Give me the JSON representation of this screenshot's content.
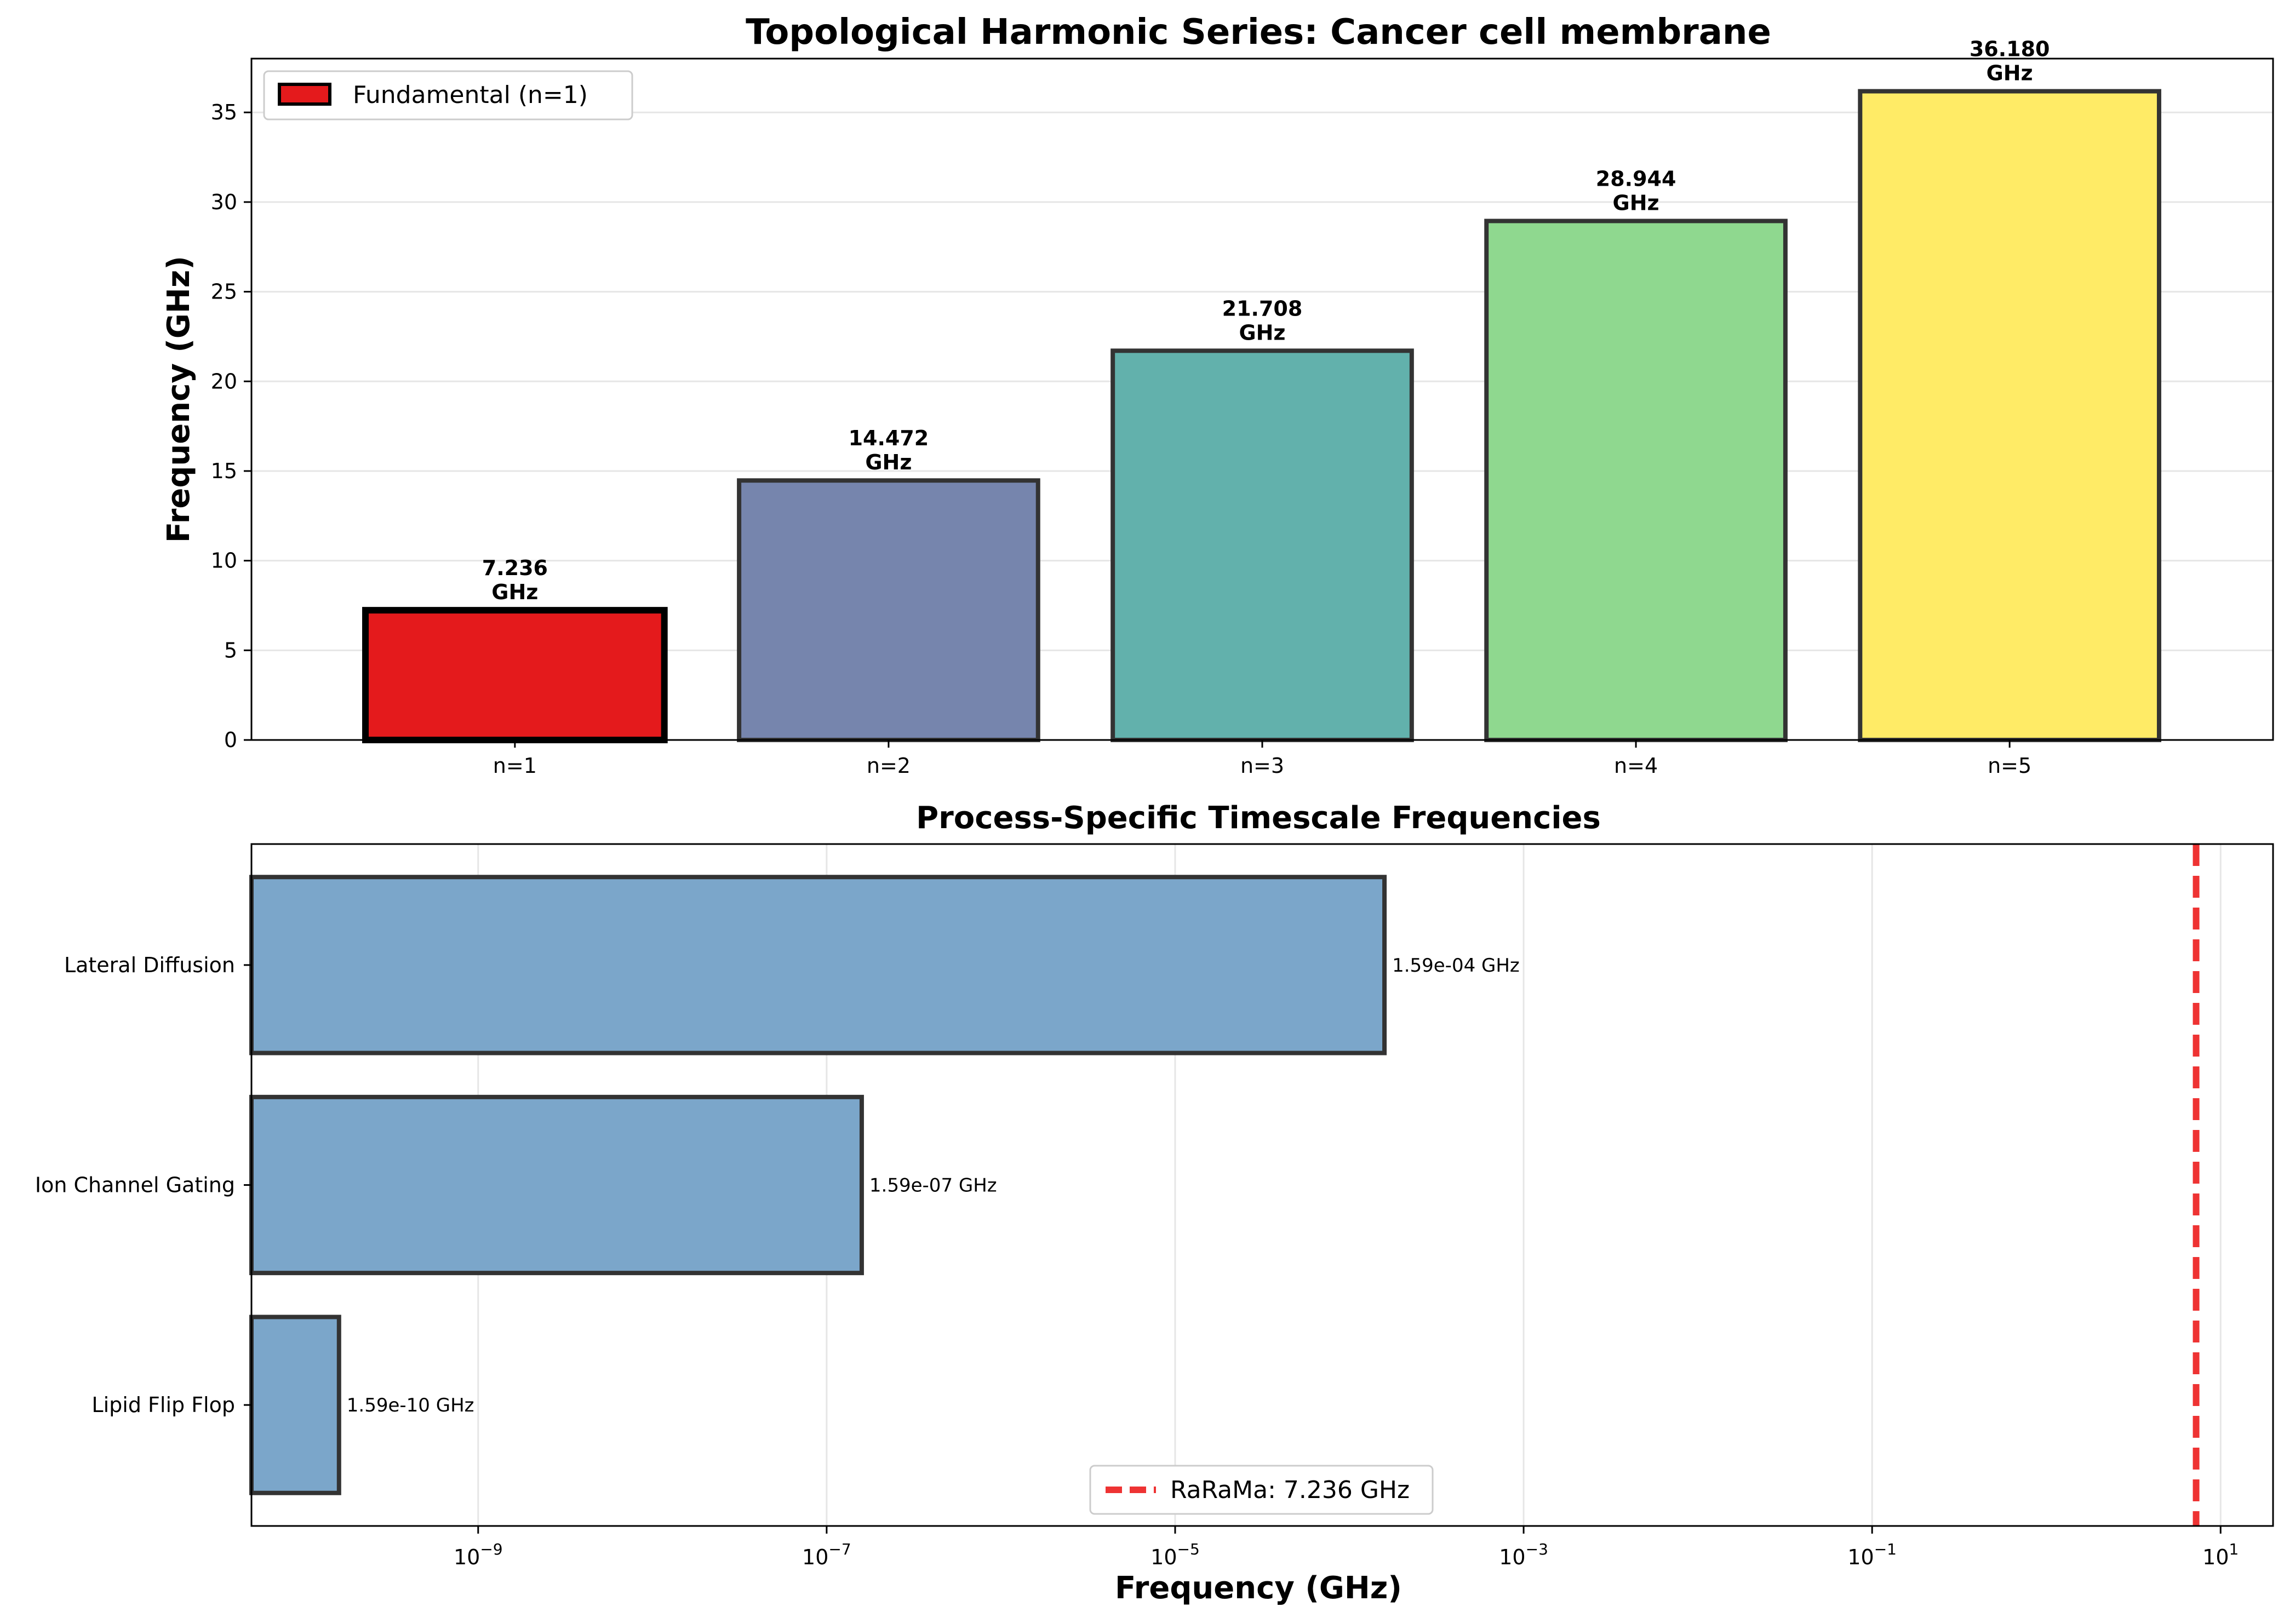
{
  "chart_data": [
    {
      "type": "bar",
      "title": "Topological Harmonic Series: Cancer cell membrane",
      "xlabel": "",
      "ylabel": "Frequency (GHz)",
      "categories": [
        "n=1",
        "n=2",
        "n=3",
        "n=4",
        "n=5"
      ],
      "values": [
        7.236,
        14.472,
        21.708,
        28.944,
        36.18
      ],
      "data_labels": [
        [
          "7.236",
          "GHz"
        ],
        [
          "14.472",
          "GHz"
        ],
        [
          "21.708",
          "GHz"
        ],
        [
          "28.944",
          "GHz"
        ],
        [
          "36.180",
          "GHz"
        ]
      ],
      "colors": [
        "#e41a1c",
        "#7685ad",
        "#62b1ac",
        "#8fd88f",
        "#ffeb66"
      ],
      "ylim": [
        0,
        38
      ],
      "yticks": [
        0,
        5,
        10,
        15,
        20,
        25,
        30,
        35
      ],
      "grid": "y",
      "legend": {
        "label": "Fundamental (n=1)",
        "color": "#e41a1c",
        "placement": "top-left"
      }
    },
    {
      "type": "bar",
      "orientation": "horizontal",
      "title": "Process-Specific Timescale Frequencies",
      "xlabel": "Frequency (GHz)",
      "ylabel": "",
      "xscale": "log",
      "categories": [
        "Lateral Diffusion",
        "Ion Channel Gating",
        "Lipid Flip Flop"
      ],
      "values": [
        0.000159,
        1.59e-07,
        1.59e-10
      ],
      "data_labels": [
        "1.59e-04 GHz",
        "1.59e-07 GHz",
        "1.59e-10 GHz"
      ],
      "bar_color": "#7ba6ca",
      "xlim": [
        5e-11,
        20
      ],
      "xticks": [
        {
          "base": "10",
          "exp": "−9",
          "value": 1e-09
        },
        {
          "base": "10",
          "exp": "−7",
          "value": 1e-07
        },
        {
          "base": "10",
          "exp": "−5",
          "value": 1e-05
        },
        {
          "base": "10",
          "exp": "−3",
          "value": 0.001
        },
        {
          "base": "10",
          "exp": "−1",
          "value": 0.1
        },
        {
          "base": "10",
          "exp": "1",
          "value": 10
        }
      ],
      "reference_line": {
        "value": 7.236,
        "label": "RaRaMa: 7.236 GHz",
        "color": "#ee3333",
        "style": "dashed"
      },
      "grid": "x",
      "legend": {
        "placement": "bottom-center"
      }
    }
  ]
}
